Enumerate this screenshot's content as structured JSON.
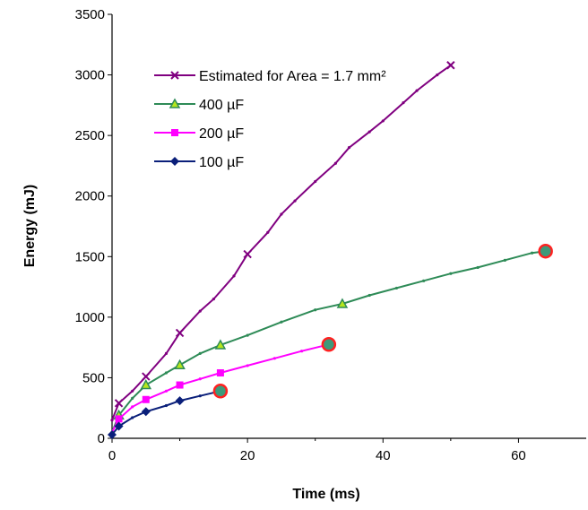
{
  "chart_data": {
    "type": "line",
    "title": "",
    "xlabel": "Time (ms)",
    "ylabel": "Energy (mJ)",
    "xlim": [
      0,
      70
    ],
    "ylim": [
      0,
      3500
    ],
    "xticks": [
      0,
      20,
      40,
      60
    ],
    "yticks": [
      0,
      500,
      1000,
      1500,
      2000,
      2500,
      3000,
      3500
    ],
    "grid": false,
    "legend_position": "top-left",
    "series": [
      {
        "name": "Estimated for Area = 1.7 mm²",
        "color": "#800080",
        "marker": "x",
        "x": [
          0,
          1,
          3,
          5,
          8,
          10,
          13,
          15,
          18,
          20,
          23,
          25,
          27,
          30,
          33,
          35,
          38,
          40,
          43,
          45,
          48,
          50
        ],
        "y": [
          150,
          290,
          390,
          510,
          700,
          870,
          1050,
          1150,
          1340,
          1520,
          1700,
          1850,
          1960,
          2120,
          2270,
          2400,
          2530,
          2620,
          2770,
          2870,
          3000,
          3080
        ],
        "marked_x": [
          1,
          5,
          10,
          20,
          50
        ],
        "marked_y": [
          290,
          510,
          870,
          1520,
          3080
        ]
      },
      {
        "name": "400 µF",
        "color": "#2e8b57",
        "marker": "triangle",
        "x": [
          0,
          1,
          3,
          5,
          8,
          10,
          13,
          16,
          20,
          25,
          30,
          34,
          38,
          42,
          46,
          50,
          54,
          58,
          62,
          64
        ],
        "y": [
          50,
          190,
          330,
          440,
          540,
          605,
          700,
          770,
          850,
          960,
          1060,
          1110,
          1180,
          1240,
          1300,
          1360,
          1410,
          1470,
          1530,
          1545
        ],
        "marked_x": [
          1,
          5,
          10,
          16,
          34
        ],
        "marked_y": [
          190,
          440,
          605,
          770,
          1110
        ],
        "end_x": 64,
        "end_y": 1545
      },
      {
        "name": "200 µF",
        "color": "#ff00ff",
        "marker": "square",
        "x": [
          0,
          1,
          3,
          5,
          8,
          10,
          13,
          16,
          20,
          24,
          28,
          32
        ],
        "y": [
          50,
          160,
          260,
          320,
          390,
          440,
          490,
          540,
          600,
          660,
          720,
          775
        ],
        "marked_x": [
          1,
          5,
          10,
          16
        ],
        "marked_y": [
          160,
          320,
          440,
          540
        ],
        "end_x": 32,
        "end_y": 775
      },
      {
        "name": "100 µF",
        "color": "#0a1f7a",
        "marker": "diamond",
        "x": [
          0,
          1,
          3,
          5,
          8,
          10,
          13,
          16
        ],
        "y": [
          30,
          100,
          170,
          220,
          270,
          310,
          350,
          390
        ],
        "marked_x": [
          0,
          1,
          5,
          10
        ],
        "marked_y": [
          30,
          100,
          220,
          310
        ],
        "end_x": 16,
        "end_y": 390
      }
    ]
  }
}
